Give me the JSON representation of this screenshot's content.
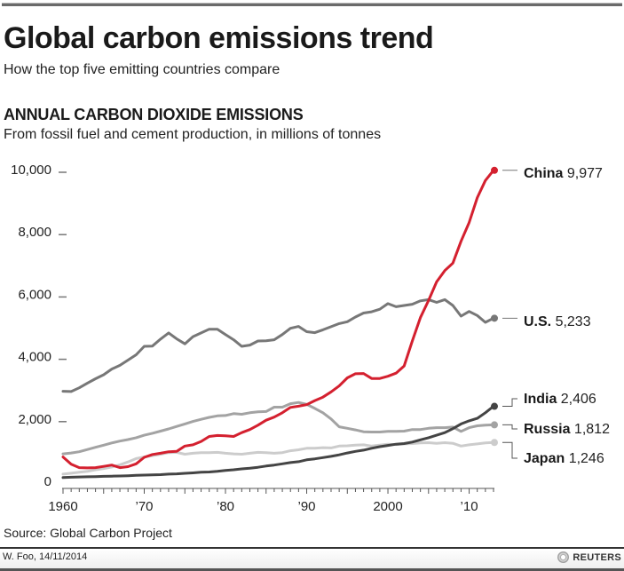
{
  "header": {
    "title": "Global carbon emissions trend",
    "subtitle": "How the top five emitting countries compare"
  },
  "chart_data": {
    "type": "line",
    "title": "ANNUAL CARBON DIOXIDE EMISSIONS",
    "subtitle": "From fossil fuel and cement production, in millions of tonnes",
    "xlabel": "",
    "ylabel": "",
    "xlim": [
      1960,
      2013
    ],
    "ylim": [
      0,
      10000
    ],
    "grid": false,
    "y_ticks": [
      0,
      2000,
      4000,
      6000,
      8000,
      10000
    ],
    "y_tick_labels": [
      "0",
      "2,000",
      "4,000",
      "6,000",
      "8,000",
      "10,000"
    ],
    "x_ticks": [
      1960,
      1970,
      1980,
      1990,
      2000,
      2010
    ],
    "x_tick_labels": [
      "1960",
      "’70",
      "’80",
      "’90",
      "2000",
      "’10"
    ],
    "legend_placement": "right, at line ends",
    "x": [
      1960,
      1961,
      1962,
      1963,
      1964,
      1965,
      1966,
      1967,
      1968,
      1969,
      1970,
      1971,
      1972,
      1973,
      1974,
      1975,
      1976,
      1977,
      1978,
      1979,
      1980,
      1981,
      1982,
      1983,
      1984,
      1985,
      1986,
      1987,
      1988,
      1989,
      1990,
      1991,
      1992,
      1993,
      1994,
      1995,
      1996,
      1997,
      1998,
      1999,
      2000,
      2001,
      2002,
      2003,
      2004,
      2005,
      2006,
      2007,
      2008,
      2009,
      2010,
      2011,
      2012,
      2013
    ],
    "series": [
      {
        "name": "China",
        "final_value_label": "9,977",
        "color": "#d4202f",
        "values": [
          780,
          550,
          440,
          430,
          440,
          480,
          520,
          440,
          470,
          560,
          770,
          860,
          900,
          950,
          960,
          1130,
          1170,
          1280,
          1440,
          1470,
          1460,
          1440,
          1560,
          1660,
          1800,
          1960,
          2060,
          2200,
          2370,
          2410,
          2460,
          2590,
          2700,
          2870,
          3060,
          3320,
          3450,
          3460,
          3300,
          3300,
          3370,
          3470,
          3700,
          4500,
          5250,
          5800,
          6400,
          6760,
          7000,
          7700,
          8300,
          9100,
          9650,
          9977
        ]
      },
      {
        "name": "U.S.",
        "final_value_label": "5,233",
        "color": "#777777",
        "values": [
          2890,
          2880,
          3000,
          3150,
          3290,
          3420,
          3600,
          3720,
          3890,
          4060,
          4330,
          4340,
          4560,
          4760,
          4570,
          4410,
          4640,
          4760,
          4880,
          4880,
          4710,
          4540,
          4330,
          4370,
          4500,
          4510,
          4540,
          4710,
          4910,
          4970,
          4800,
          4770,
          4860,
          4960,
          5060,
          5120,
          5270,
          5400,
          5440,
          5520,
          5700,
          5600,
          5640,
          5680,
          5790,
          5830,
          5740,
          5830,
          5640,
          5300,
          5450,
          5320,
          5100,
          5233
        ]
      },
      {
        "name": "India",
        "final_value_label": "2,406",
        "color": "#444444",
        "values": [
          120,
          130,
          140,
          145,
          150,
          160,
          165,
          170,
          180,
          190,
          200,
          205,
          215,
          230,
          240,
          255,
          270,
          290,
          300,
          320,
          350,
          370,
          400,
          420,
          450,
          490,
          520,
          560,
          600,
          630,
          690,
          720,
          760,
          800,
          850,
          910,
          960,
          1000,
          1060,
          1110,
          1150,
          1190,
          1210,
          1260,
          1330,
          1400,
          1480,
          1560,
          1690,
          1840,
          1940,
          2020,
          2200,
          2406
        ]
      },
      {
        "name": "Russia",
        "final_value_label": "1,812",
        "color": "#a3a3a3",
        "values": [
          880,
          910,
          950,
          1020,
          1090,
          1160,
          1230,
          1290,
          1340,
          1400,
          1480,
          1540,
          1610,
          1680,
          1760,
          1840,
          1920,
          1990,
          2050,
          2100,
          2110,
          2170,
          2150,
          2200,
          2230,
          2240,
          2380,
          2380,
          2490,
          2530,
          2470,
          2340,
          2200,
          2000,
          1750,
          1700,
          1650,
          1590,
          1580,
          1580,
          1600,
          1600,
          1610,
          1660,
          1660,
          1700,
          1720,
          1720,
          1740,
          1600,
          1720,
          1780,
          1800,
          1812
        ]
      },
      {
        "name": "Japan",
        "final_value_label": "1,246",
        "color": "#cccccc",
        "values": [
          230,
          260,
          290,
          320,
          370,
          410,
          460,
          530,
          620,
          730,
          780,
          820,
          870,
          920,
          930,
          870,
          900,
          920,
          920,
          930,
          900,
          880,
          870,
          900,
          930,
          920,
          900,
          920,
          980,
          1010,
          1060,
          1060,
          1080,
          1070,
          1130,
          1140,
          1160,
          1170,
          1130,
          1160,
          1190,
          1180,
          1200,
          1210,
          1230,
          1240,
          1220,
          1240,
          1220,
          1130,
          1170,
          1200,
          1230,
          1246
        ]
      }
    ]
  },
  "footer": {
    "source": "Source: Global Carbon Project",
    "credit": "W. Foo, 14/11/2014",
    "brand": "REUTERS"
  }
}
